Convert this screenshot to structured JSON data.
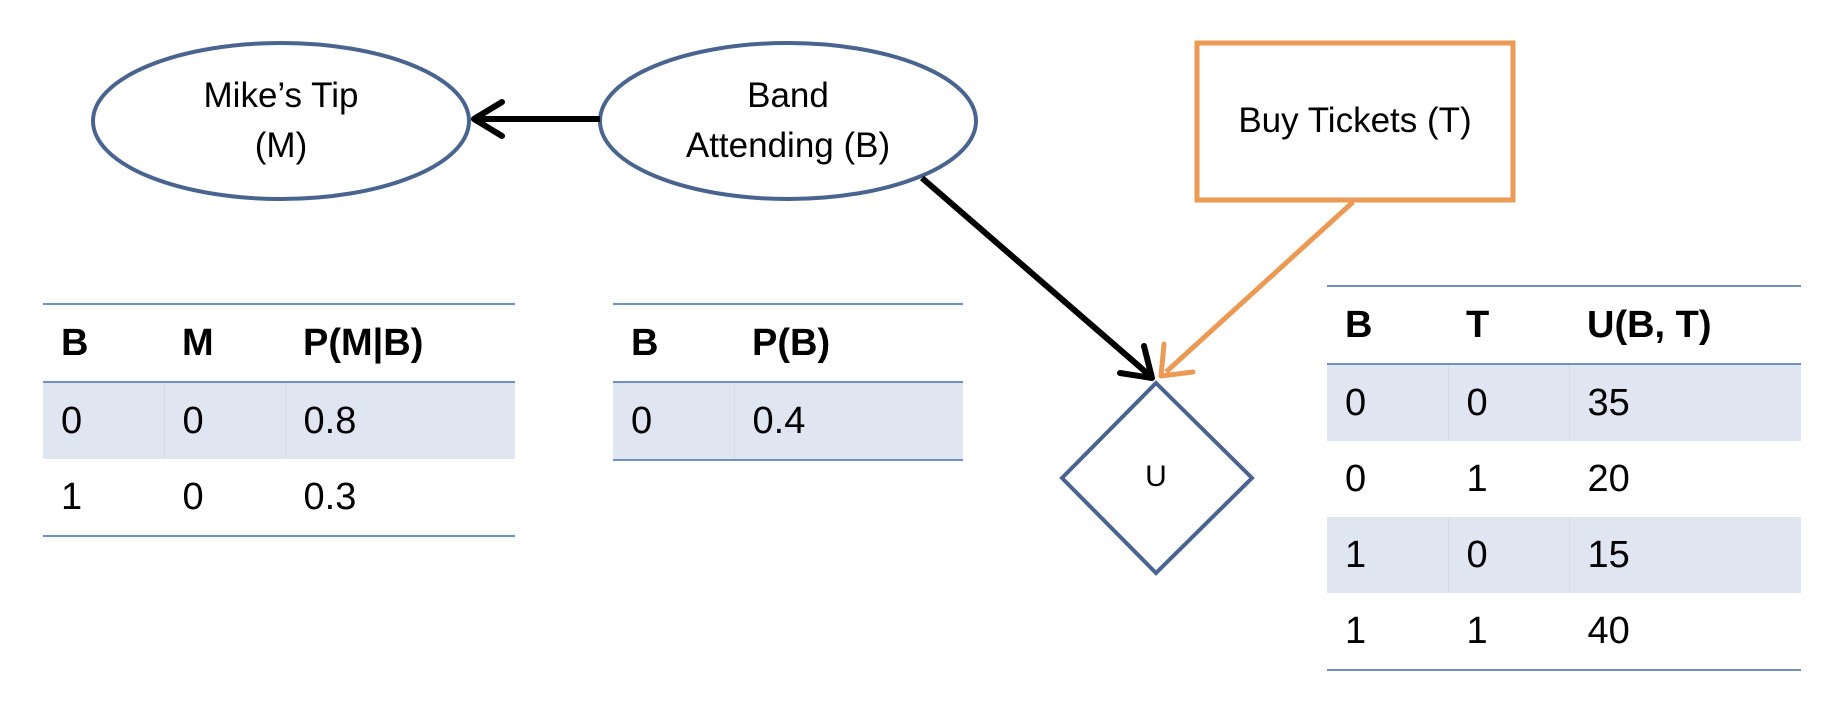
{
  "nodes": {
    "mikes_tip": {
      "line1": "Mike’s Tip",
      "line2": "(M)"
    },
    "band": {
      "line1": "Band",
      "line2": "Attending (B)"
    },
    "tickets": {
      "label": "Buy Tickets (T)"
    },
    "utility": {
      "label": "U"
    }
  },
  "colors": {
    "chance_node": "#4a6490",
    "decision_node": "#eb9a55",
    "utility_node": "#4a6490",
    "arrow": "#000000",
    "table_shade": "#dfe5f1",
    "table_rule": "#6f8fc7"
  },
  "tables": {
    "pmb": {
      "headers": [
        "B",
        "M",
        "P(M|B)"
      ],
      "rows": [
        [
          "0",
          "0",
          "0.8"
        ],
        [
          "1",
          "0",
          "0.3"
        ]
      ]
    },
    "pb": {
      "headers": [
        "B",
        "P(B)"
      ],
      "rows": [
        [
          "0",
          "0.4"
        ]
      ]
    },
    "ubt": {
      "headers": [
        "B",
        "T",
        "U(B, T)"
      ],
      "rows": [
        [
          "0",
          "0",
          "35"
        ],
        [
          "0",
          "1",
          "20"
        ],
        [
          "1",
          "0",
          "15"
        ],
        [
          "1",
          "1",
          "40"
        ]
      ]
    }
  }
}
